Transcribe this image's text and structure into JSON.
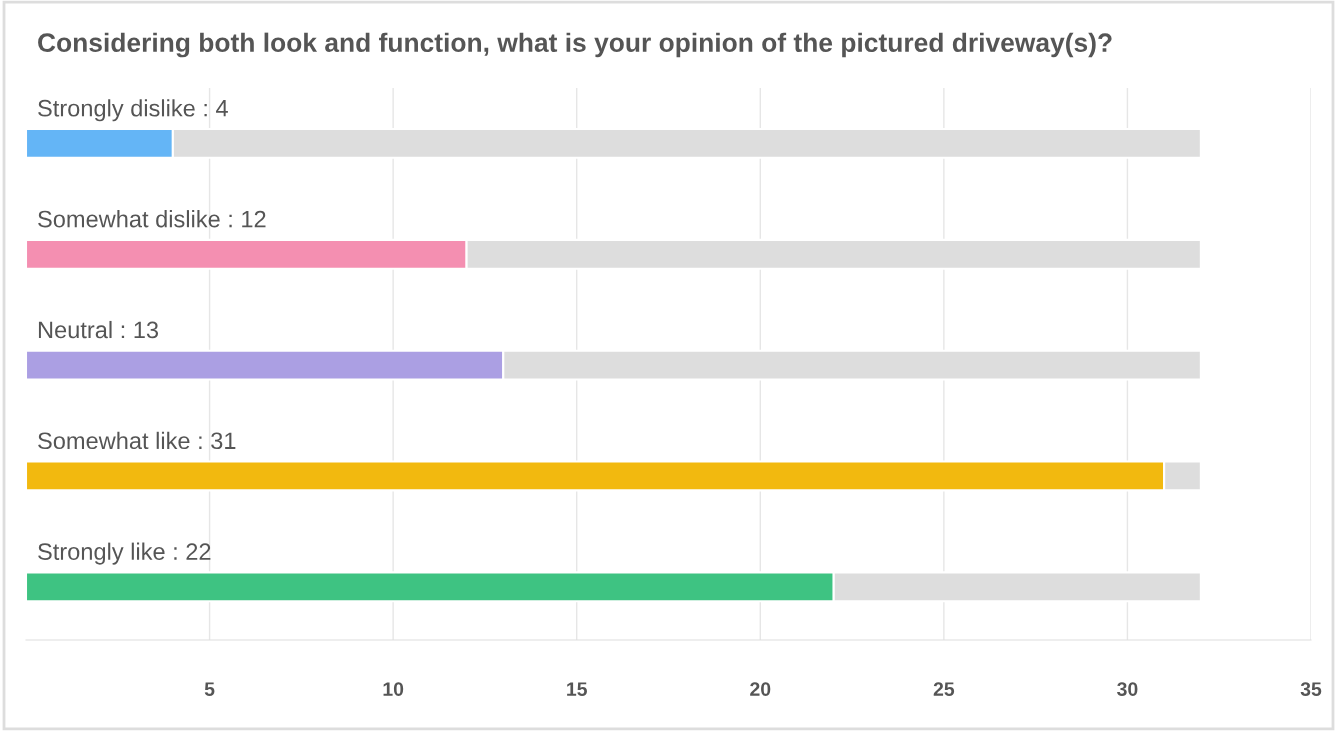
{
  "chart_data": {
    "type": "bar",
    "orientation": "horizontal",
    "stacked": true,
    "title": "Considering both look and function, what is your opinion of the pictured driveway(s)?",
    "categories": [
      "Strongly dislike",
      "Somewhat dislike",
      "Neutral",
      "Somewhat like",
      "Strongly like"
    ],
    "series": [
      {
        "colors": [
          "#64b5f6",
          "#f48fb1",
          "#ab9fe3",
          "#f2b90f",
          "#3ec382"
        ],
        "values": [
          4,
          12,
          13,
          31,
          22
        ],
        "value_labels": [
          ": 4",
          ": 12",
          ": 13",
          ": 31",
          ": 22"
        ]
      },
      {
        "color": "#dddddd",
        "values": [
          28,
          20,
          19,
          1,
          10
        ]
      }
    ],
    "xlim": [
      0,
      35
    ],
    "xticks": [
      5,
      10,
      15,
      20,
      25,
      30,
      35
    ],
    "grid": "x",
    "tick_labels": "x"
  }
}
